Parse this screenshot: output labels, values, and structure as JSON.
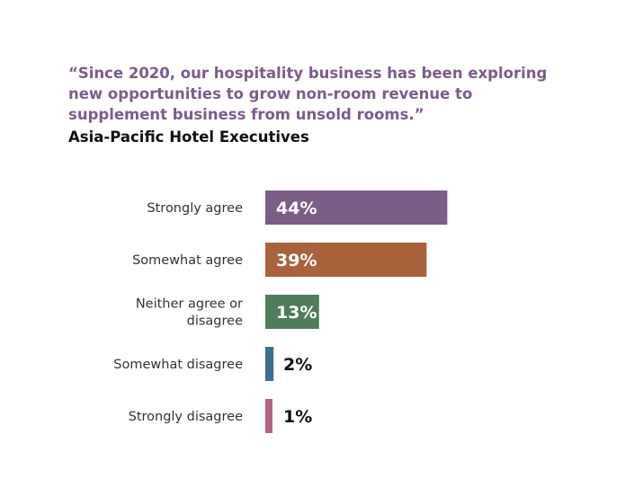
{
  "chart_data": {
    "type": "bar",
    "orientation": "horizontal",
    "title_lines": [
      "“Since 2020, our hospitality business has been exploring",
      "new opportunities to grow non-room revenue to",
      "supplement business from unsold rooms.”"
    ],
    "subtitle": "Asia-Pacific Hotel Executives",
    "categories": [
      [
        "Strongly agree"
      ],
      [
        "Somewhat agree"
      ],
      [
        "Neither agree or",
        "disagree"
      ],
      [
        "Somewhat disagree"
      ],
      [
        "Strongly disagree"
      ]
    ],
    "values": [
      44,
      39,
      13,
      2,
      1
    ],
    "value_labels": [
      "44%",
      "39%",
      "13%",
      "2%",
      "1%"
    ],
    "colors": [
      "#7b5d88",
      "#a9623a",
      "#4f7d5c",
      "#3e6e8e",
      "#b0657a"
    ],
    "xlim": [
      0,
      100
    ],
    "grid": false,
    "legend": "none"
  }
}
